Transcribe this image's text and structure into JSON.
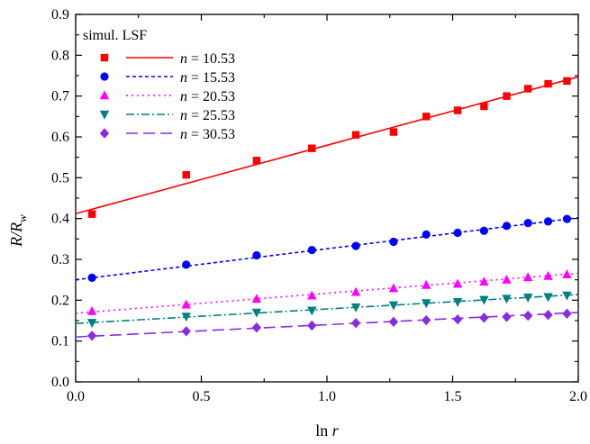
{
  "chart_data": {
    "type": "scatter",
    "title": "",
    "xlabel_main": "ln",
    "xlabel_var": "r",
    "ylabel_main": "R/R",
    "ylabel_sub": "w",
    "xlim": [
      0.0,
      2.0
    ],
    "ylim": [
      0.0,
      0.9
    ],
    "x_ticks": [
      "0.0",
      "0.5",
      "1.0",
      "1.5",
      "2.0"
    ],
    "y_ticks": [
      "0.0",
      "0.1",
      "0.2",
      "0.3",
      "0.4",
      "0.5",
      "0.6",
      "0.7",
      "0.8",
      "0.9"
    ],
    "legend_header": "simul. LSF",
    "legend_position": "top-left",
    "grid": false,
    "x": [
      0.065,
      0.44,
      0.72,
      0.94,
      1.115,
      1.265,
      1.395,
      1.52,
      1.625,
      1.715,
      1.8,
      1.88,
      1.955
    ],
    "series": [
      {
        "legend_var": "n",
        "legend_value": "= 10.53",
        "color": "#ff0000",
        "marker": "square",
        "line_style": "solid",
        "y": [
          0.411,
          0.507,
          0.542,
          0.572,
          0.605,
          0.612,
          0.65,
          0.665,
          0.675,
          0.7,
          0.718,
          0.73,
          0.737
        ],
        "fit": [
          0.412,
          0.747
        ]
      },
      {
        "legend_var": "n",
        "legend_value": "= 15.53",
        "color": "#0000ff",
        "marker": "circle",
        "line_style": "short-dash",
        "y": [
          0.255,
          0.287,
          0.31,
          0.323,
          0.333,
          0.343,
          0.361,
          0.365,
          0.37,
          0.382,
          0.389,
          0.393,
          0.399
        ],
        "fit": [
          0.25,
          0.402
        ]
      },
      {
        "legend_var": "n",
        "legend_value": "= 20.53",
        "color": "#ff00ff",
        "marker": "triangle-up",
        "line_style": "dotted",
        "y": [
          0.173,
          0.189,
          0.203,
          0.211,
          0.22,
          0.229,
          0.237,
          0.24,
          0.245,
          0.25,
          0.256,
          0.259,
          0.263
        ],
        "fit": [
          0.168,
          0.266
        ]
      },
      {
        "legend_var": "n",
        "legend_value": "= 25.53",
        "color": "#008080",
        "marker": "triangle-down",
        "line_style": "dash-dot",
        "y": [
          0.145,
          0.16,
          0.17,
          0.175,
          0.183,
          0.188,
          0.193,
          0.196,
          0.201,
          0.204,
          0.207,
          0.208,
          0.212
        ],
        "fit": [
          0.143,
          0.214
        ]
      },
      {
        "legend_var": "n",
        "legend_value": "= 30.53",
        "color": "#8a2be2",
        "marker": "diamond",
        "line_style": "long-dash",
        "y": [
          0.113,
          0.124,
          0.133,
          0.138,
          0.144,
          0.147,
          0.151,
          0.153,
          0.157,
          0.159,
          0.162,
          0.164,
          0.167
        ],
        "fit": [
          0.11,
          0.17
        ]
      }
    ]
  }
}
